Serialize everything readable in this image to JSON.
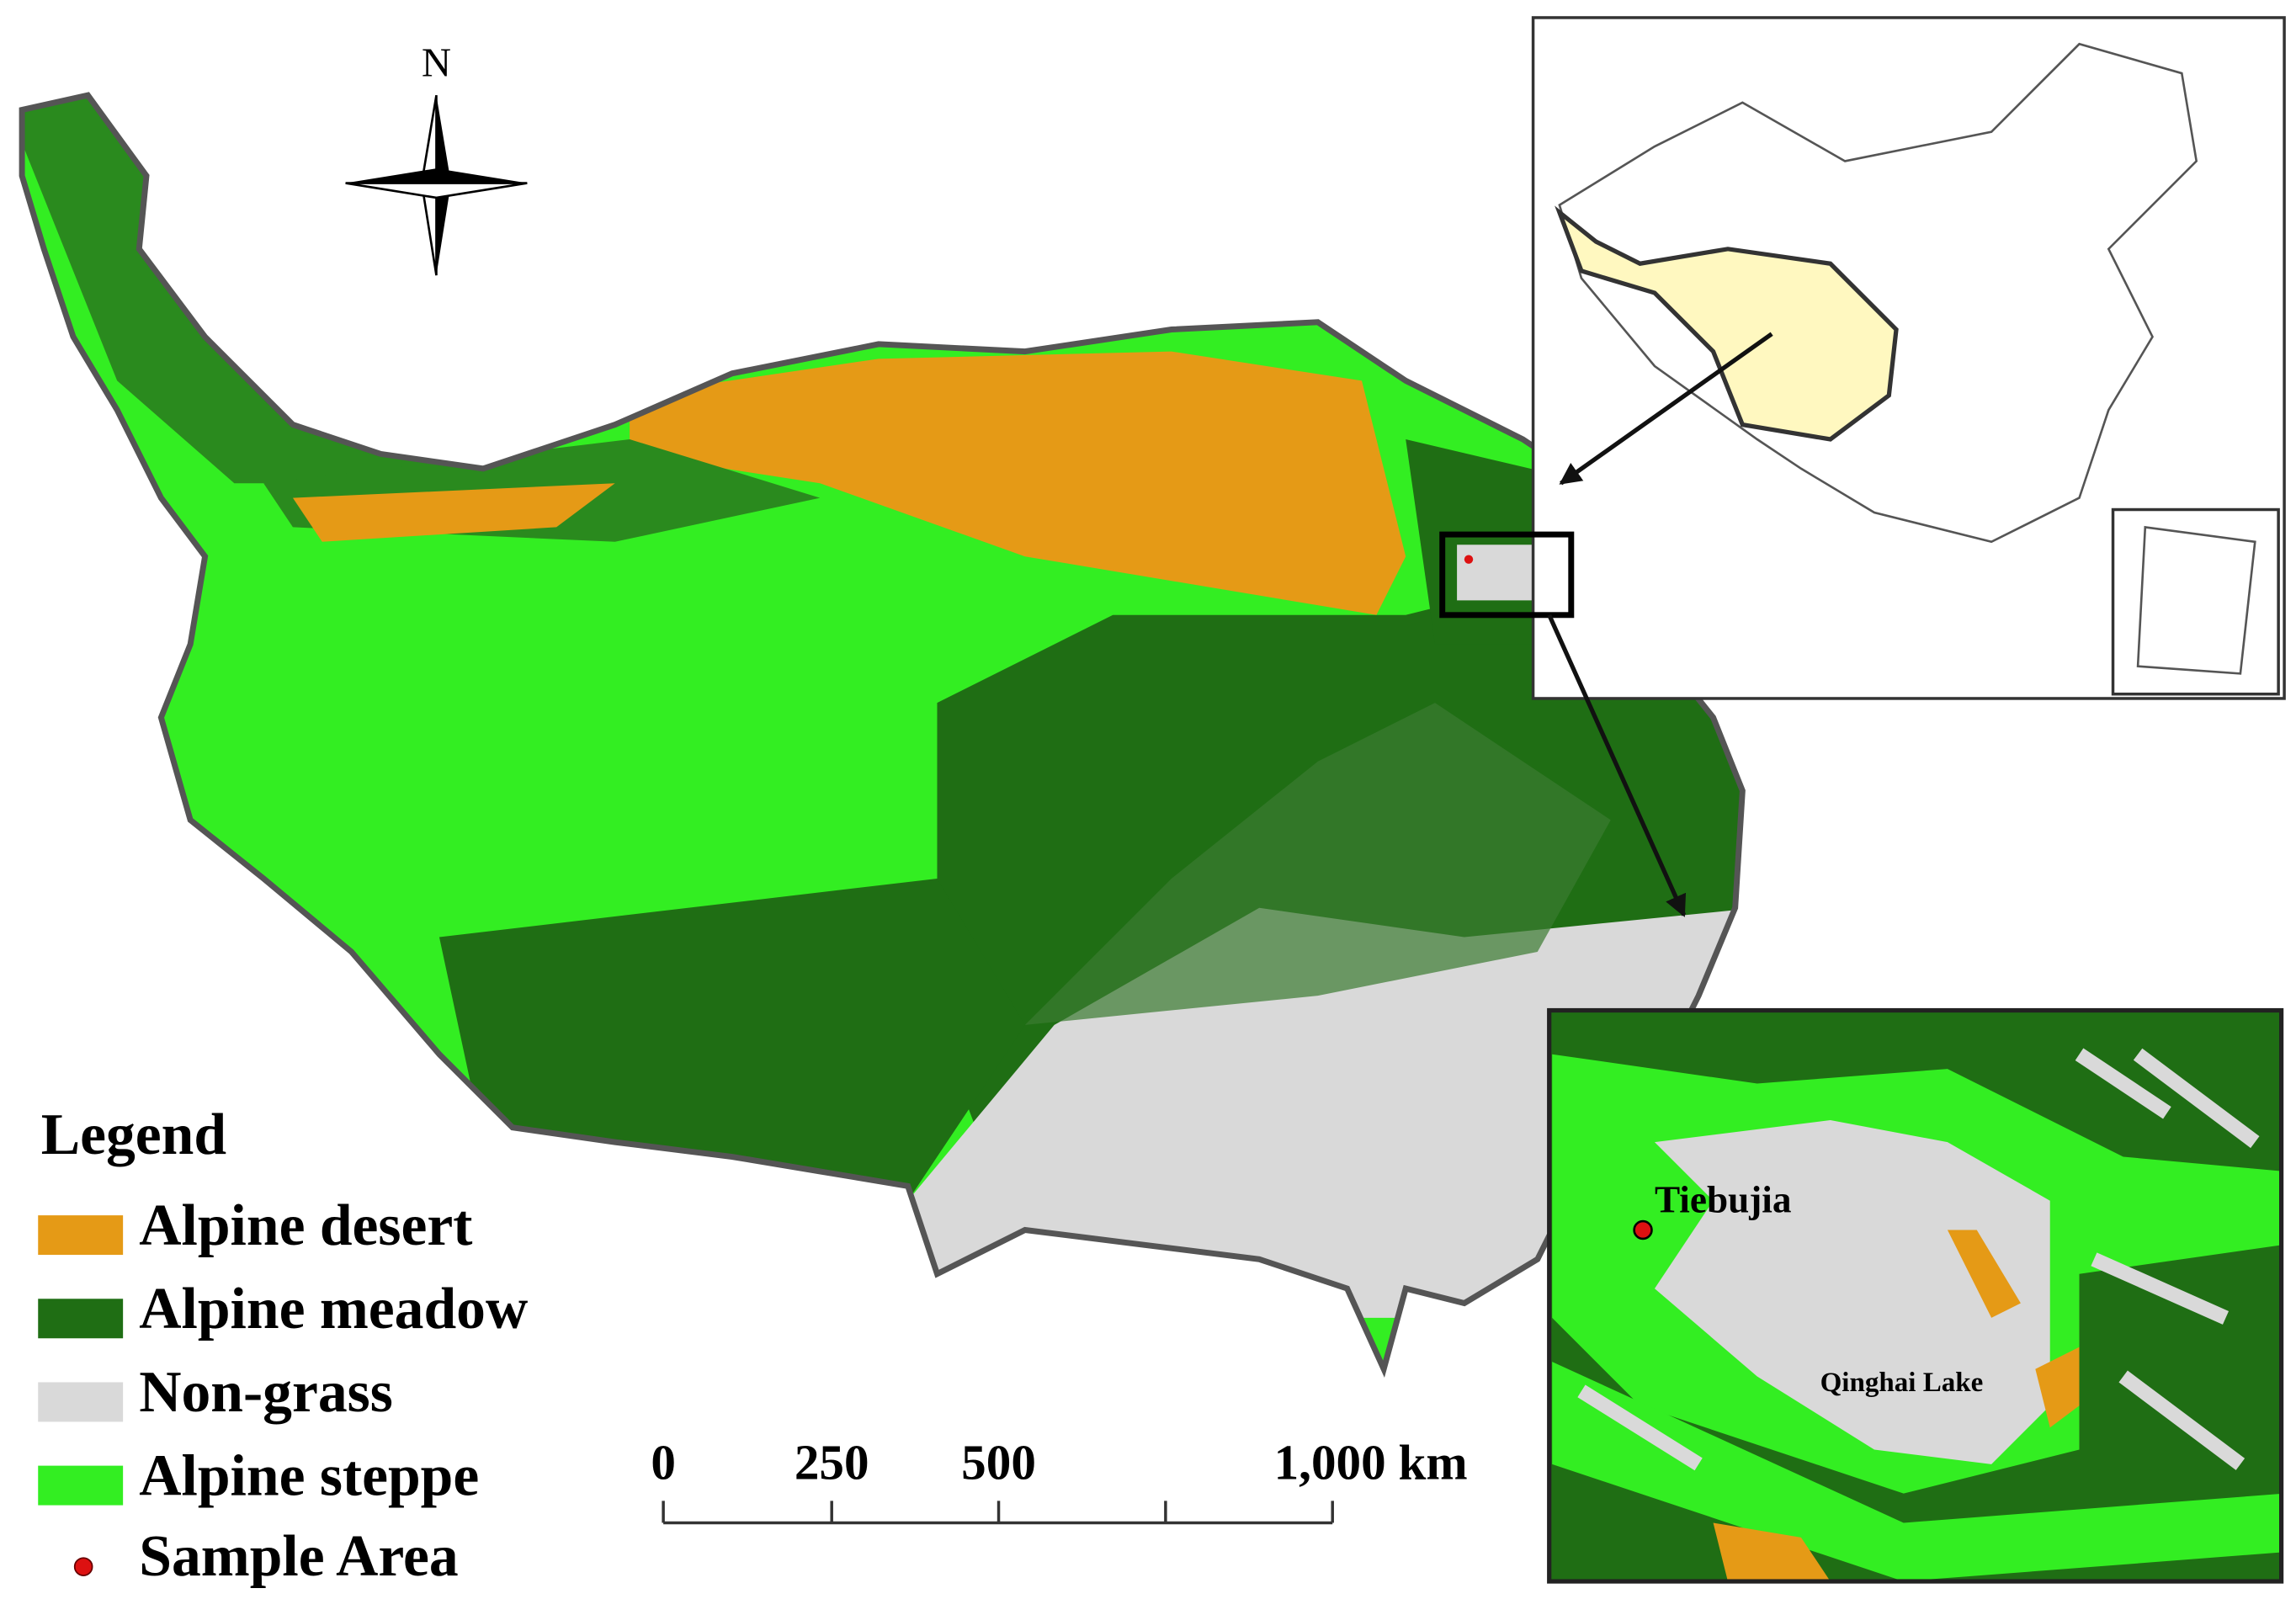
{
  "north_label": "N",
  "legend": {
    "title": "Legend",
    "items": [
      "Alpine desert",
      "Alpine meadow",
      "Non-grass",
      "Alpine steppe",
      "Sample Area"
    ]
  },
  "scale_bar": {
    "labels": [
      "0",
      "250",
      "500",
      "1,000 km"
    ]
  },
  "detail_inset": {
    "site_label": "Tiebujia",
    "lake_label": "Qinghai Lake"
  }
}
